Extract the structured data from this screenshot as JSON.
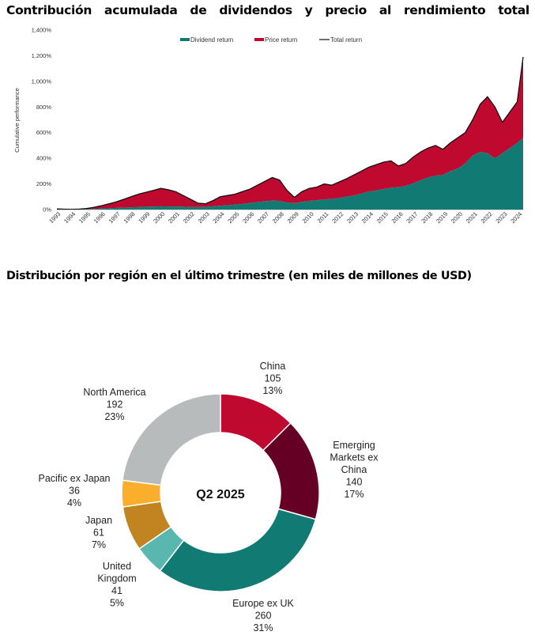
{
  "titles": {
    "chart1_words": [
      "Contribución",
      "acumulada",
      "de",
      "dividendos",
      "y",
      "precio",
      "al",
      "rendimiento",
      "total"
    ],
    "chart2": "Distribución por región en el último trimestre (en miles de millones de USD)"
  },
  "colors": {
    "dividend": "#117A73",
    "price": "#C0092E",
    "total": "#111111"
  },
  "chart_data": [
    {
      "type": "area",
      "title": "Contribución acumulada de dividendos y precio al rendimiento total",
      "ylabel": "Cumulative performance",
      "xlabel": "",
      "ylim": [
        0,
        1400
      ],
      "yticks": [
        0,
        200,
        400,
        600,
        800,
        1000,
        1200,
        1400
      ],
      "ytick_labels": [
        "0%",
        "200%",
        "400%",
        "600%",
        "800%",
        "1,000%",
        "1,200%",
        "1,400%"
      ],
      "x_tick_labels": [
        "1993",
        "1994",
        "1995",
        "1996",
        "1997",
        "1998",
        "1999",
        "2000",
        "2001",
        "2002",
        "2003",
        "2004",
        "2005",
        "2006",
        "2007",
        "2008",
        "2009",
        "2010",
        "2011",
        "2012",
        "2013",
        "2014",
        "2015",
        "2016",
        "2017",
        "2018",
        "2019",
        "2020",
        "2021",
        "2022",
        "2023",
        "2024"
      ],
      "legend": [
        "Dividend return",
        "Price return",
        "Total return"
      ],
      "legend_position": "top",
      "x": [
        1993.0,
        1993.5,
        1994.0,
        1994.5,
        1995.0,
        1995.5,
        1996.0,
        1996.5,
        1997.0,
        1997.5,
        1998.0,
        1998.5,
        1999.0,
        1999.5,
        2000.0,
        2000.5,
        2001.0,
        2001.5,
        2002.0,
        2002.5,
        2003.0,
        2003.5,
        2004.0,
        2004.5,
        2005.0,
        2005.5,
        2006.0,
        2006.5,
        2007.0,
        2007.5,
        2008.0,
        2008.5,
        2009.0,
        2009.5,
        2010.0,
        2010.5,
        2011.0,
        2011.5,
        2012.0,
        2012.5,
        2013.0,
        2013.5,
        2014.0,
        2014.5,
        2015.0,
        2015.5,
        2016.0,
        2016.5,
        2017.0,
        2017.5,
        2018.0,
        2018.5,
        2019.0,
        2019.5,
        2020.0,
        2020.5,
        2021.0,
        2021.5,
        2022.0,
        2022.5,
        2023.0,
        2023.5,
        2024.0,
        2024.4
      ],
      "series": [
        {
          "name": "Dividend return",
          "values": [
            0,
            1,
            2,
            2,
            3,
            5,
            8,
            10,
            13,
            15,
            18,
            19,
            22,
            23,
            25,
            24,
            24,
            22,
            20,
            19,
            21,
            25,
            30,
            34,
            38,
            44,
            52,
            58,
            65,
            70,
            68,
            55,
            50,
            60,
            68,
            72,
            80,
            82,
            90,
            100,
            110,
            125,
            140,
            150,
            160,
            170,
            175,
            185,
            205,
            230,
            250,
            265,
            270,
            300,
            320,
            360,
            420,
            450,
            440,
            400,
            440,
            480,
            520,
            560
          ]
        },
        {
          "name": "Total return",
          "values": [
            5,
            3,
            2,
            4,
            8,
            18,
            30,
            45,
            60,
            80,
            100,
            120,
            135,
            150,
            165,
            155,
            140,
            110,
            80,
            50,
            45,
            70,
            100,
            110,
            120,
            140,
            160,
            190,
            220,
            250,
            230,
            150,
            95,
            140,
            165,
            175,
            200,
            190,
            215,
            240,
            270,
            300,
            330,
            350,
            370,
            380,
            340,
            360,
            410,
            450,
            480,
            500,
            470,
            520,
            560,
            600,
            700,
            820,
            880,
            800,
            680,
            760,
            840,
            1190
          ]
        }
      ]
    },
    {
      "type": "pie",
      "variant": "donut",
      "title": "Distribución por región en el último trimestre (en miles de millones de USD)",
      "center_label": "Q2 2025",
      "unit": "USD billions",
      "slices": [
        {
          "label": "China",
          "label_lines": [
            "China"
          ],
          "value": 105,
          "percent": "13%",
          "color": "#C0092E"
        },
        {
          "label": "Emerging Markets ex China",
          "label_lines": [
            "Emerging",
            "Markets ex",
            "China"
          ],
          "value": 140,
          "percent": "17%",
          "color": "#650024"
        },
        {
          "label": "Europe ex UK",
          "label_lines": [
            "Europe ex UK"
          ],
          "value": 260,
          "percent": "31%",
          "color": "#117A73"
        },
        {
          "label": "United Kingdom",
          "label_lines": [
            "United",
            "Kingdom"
          ],
          "value": 41,
          "percent": "5%",
          "color": "#59B7B0"
        },
        {
          "label": "Japan",
          "label_lines": [
            "Japan"
          ],
          "value": 61,
          "percent": "7%",
          "color": "#C28420"
        },
        {
          "label": "Pacific ex Japan",
          "label_lines": [
            "Pacific ex Japan"
          ],
          "value": 36,
          "percent": "4%",
          "color": "#FBAE2C"
        },
        {
          "label": "North America",
          "label_lines": [
            "North America"
          ],
          "value": 192,
          "percent": "23%",
          "color": "#B7BBBC"
        }
      ]
    }
  ]
}
